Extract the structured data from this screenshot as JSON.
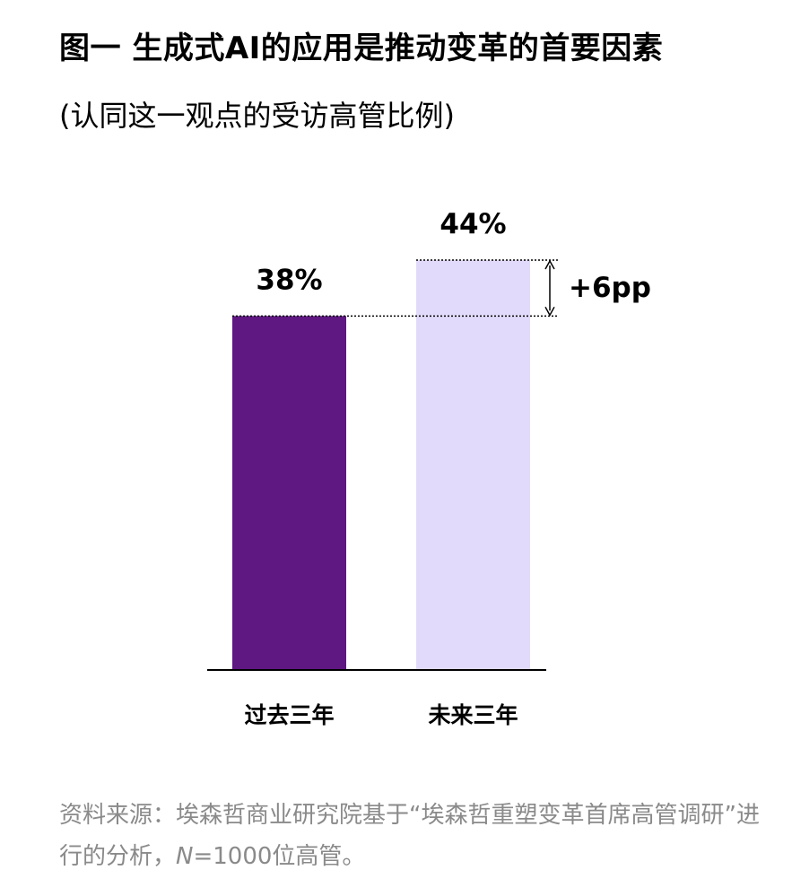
{
  "title": "图一 生成式AI的应用是推动变革的首要因素",
  "subtitle": "(认同这一观点的受访高管比例)",
  "chart_data": {
    "type": "bar",
    "categories": [
      "过去三年",
      "未来三年"
    ],
    "values": [
      38,
      44
    ],
    "value_labels": [
      "38%",
      "44%"
    ],
    "colors": [
      "#5f1782",
      "#e2dafa"
    ],
    "annotation": "+6pp",
    "ylim": [
      0,
      44
    ],
    "xlabel": "",
    "ylabel": "",
    "grid": false
  },
  "source": {
    "prefix": "资料来源：埃森哲商业研究院基于“埃森哲重塑变革首席高管调研”进行的分析，",
    "n_var": "N",
    "suffix": "=1000位高管。"
  }
}
